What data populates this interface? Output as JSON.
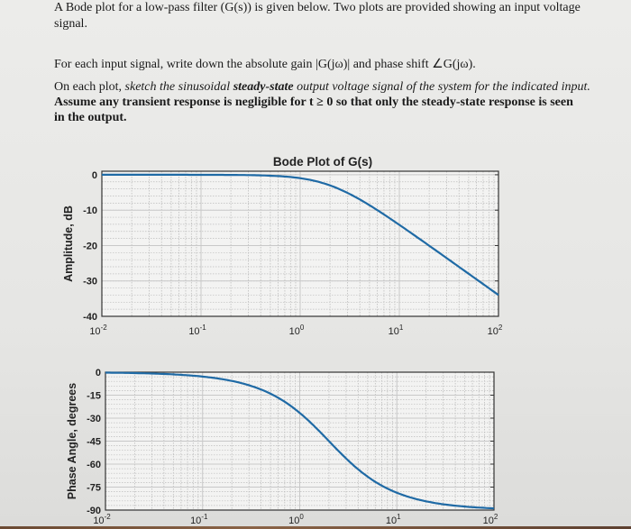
{
  "question": {
    "intro_line1": "A Bode plot for a low-pass filter (G(s)) is given below. Two plots are provided showing an input voltage",
    "intro_line2": "signal.",
    "task1": "For each input signal, write down the absolute gain |G(jω)| and phase shift ∠G(jω).",
    "task2_prefix": "On each plot, ",
    "task2_italic1": "sketch the sinusoidal ",
    "task2_bolditalic": "steady-state",
    "task2_italic2": " output voltage signal of the system for the indicated input.",
    "task3_line1": "Assume any transient response is negligible for t ≥ 0 so that only the steady-state response is seen",
    "task3_line2": "in the output."
  },
  "colors": {
    "curve": "#1f6aa5",
    "major_grid": "#c8c8c8",
    "minor_grid": "#bdbdbd",
    "plot_bg": "#f3f3f2"
  },
  "chart_data": [
    {
      "type": "line",
      "title": "Bode Plot of G(s)",
      "ylabel": "Amplitude, dB",
      "xscale": "log",
      "xlim": [
        0.01,
        100
      ],
      "ylim": [
        -40,
        1
      ],
      "xticks": [
        "10^-2",
        "10^-1",
        "10^0",
        "10^1",
        "10^2"
      ],
      "yticks": [
        "0",
        "-10",
        "-20",
        "-30",
        "-40"
      ],
      "ytick_values": [
        0,
        -10,
        -20,
        -30,
        -40
      ],
      "grid": true,
      "series": [
        {
          "x": [
            0.01,
            0.1,
            0.5,
            1,
            2,
            5,
            10,
            20,
            50,
            100
          ],
          "y": [
            0,
            0,
            -0.3,
            -1,
            -3,
            -8.6,
            -14.2,
            -20,
            -28,
            -34
          ]
        }
      ]
    },
    {
      "type": "line",
      "ylabel": "Phase Angle, degrees",
      "xscale": "log",
      "xlim": [
        0.01,
        100
      ],
      "ylim": [
        -90,
        0
      ],
      "xticks": [
        "10^-2",
        "10^-1",
        "10^0",
        "10^1",
        "10^2"
      ],
      "yticks": [
        "0",
        "-15",
        "-30",
        "-45",
        "-60",
        "-75",
        "-90"
      ],
      "ytick_values": [
        0,
        -15,
        -30,
        -45,
        -60,
        -75,
        -90
      ],
      "grid": true,
      "series": [
        {
          "x": [
            0.01,
            0.1,
            0.5,
            1,
            2,
            5,
            10,
            20,
            50,
            100
          ],
          "y": [
            -0.3,
            -3,
            -14,
            -26.6,
            -45,
            -68,
            -79,
            -84,
            -88,
            -89
          ]
        }
      ]
    }
  ]
}
